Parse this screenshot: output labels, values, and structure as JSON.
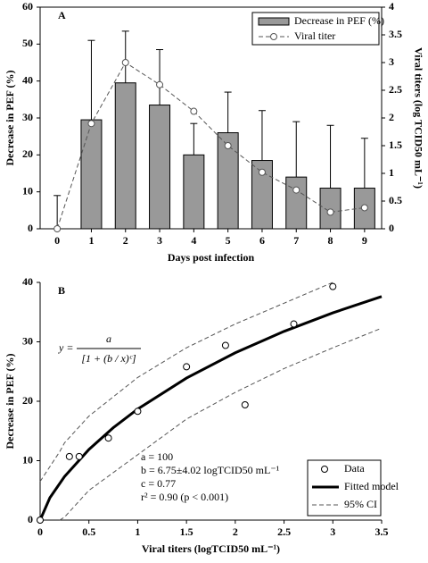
{
  "chart_data": [
    {
      "type": "bar",
      "panel": "A",
      "x_label": "Days post infection",
      "y_label": "Decrease in PEF (%)",
      "y2_label": "Viral titers (log TCID50 mL⁻¹)",
      "x": [
        0,
        1,
        2,
        3,
        4,
        5,
        6,
        7,
        8,
        9
      ],
      "xlim": [
        -0.5,
        9.5
      ],
      "xticks": [
        0,
        1,
        2,
        3,
        4,
        5,
        6,
        7,
        8,
        9
      ],
      "ylim": [
        0,
        60
      ],
      "yticks": [
        0,
        10,
        20,
        30,
        40,
        50,
        60
      ],
      "y2lim": [
        0,
        4
      ],
      "y2ticks": [
        0,
        0.5,
        1,
        1.5,
        2,
        2.5,
        3,
        3.5,
        4
      ],
      "legend": "upper right",
      "series": [
        {
          "name": "Decrease in PEF (%)",
          "color": "#999999",
          "values": [
            0,
            29.5,
            39.5,
            33.5,
            20,
            26,
            18.5,
            14,
            11,
            11
          ],
          "errors": [
            9,
            21.5,
            14,
            15,
            8.5,
            11,
            13.5,
            15,
            17,
            13.5
          ]
        },
        {
          "name": "Viral titer",
          "axis": "y2",
          "color": "#555555",
          "values": [
            0,
            1.9,
            3.0,
            2.6,
            2.12,
            1.5,
            1.02,
            0.7,
            0.3,
            0.38
          ]
        }
      ]
    },
    {
      "type": "scatter",
      "panel": "B",
      "x_label": "Viral titers (logTCID50 mL⁻¹)",
      "y_label": "Decrease in PEF (%)",
      "xlim": [
        0,
        3.5
      ],
      "xticks": [
        0,
        0.5,
        1,
        1.5,
        2,
        2.5,
        3,
        3.5
      ],
      "ylim": [
        0,
        40
      ],
      "yticks": [
        0,
        10,
        20,
        30,
        40
      ],
      "legend": "lower right",
      "equation": {
        "lhs": "y =",
        "numerator": "a",
        "denominator": "[1 + (b / x)ᶜ]"
      },
      "annotations": [
        "a = 100",
        "b = 6.75±4.02 logTCID50 mL⁻¹",
        "c = 0.77",
        "r² = 0.90 (p < 0.001)"
      ],
      "series": [
        {
          "name": "Data",
          "color": "#000000",
          "x": [
            0,
            0.3,
            0.4,
            0.7,
            1.0,
            1.5,
            1.9,
            2.1,
            2.6,
            3.0
          ],
          "values": [
            0,
            10.7,
            10.7,
            13.8,
            18.3,
            25.8,
            29.4,
            19.4,
            33,
            39.3
          ]
        },
        {
          "name": "Fitted model",
          "color": "#000000",
          "x": [
            0,
            0.1,
            0.25,
            0.5,
            0.75,
            1,
            1.5,
            2,
            2.5,
            3,
            3.5
          ],
          "values": [
            0,
            3.76,
            7.33,
            11.88,
            15.55,
            18.69,
            23.9,
            28.16,
            31.76,
            34.88,
            37.62
          ]
        },
        {
          "name": "95% CI",
          "color": "#555555",
          "x": [
            0,
            0.2,
            0.25,
            0.5,
            1,
            1.5,
            2,
            2.5,
            3,
            3.5
          ],
          "upper": [
            6.5,
            11.5,
            13,
            17.5,
            24,
            29,
            33,
            36.5,
            40,
            null
          ],
          "lower": [
            null,
            0,
            0.5,
            5,
            11,
            17,
            21.5,
            25.5,
            29,
            32.3
          ]
        }
      ]
    }
  ]
}
